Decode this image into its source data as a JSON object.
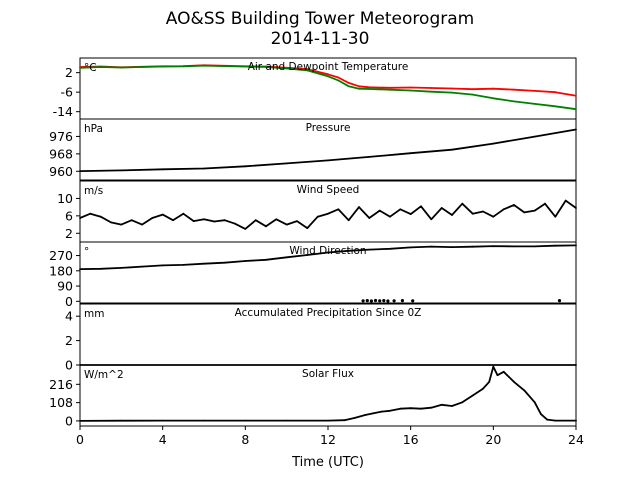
{
  "title_line1": "AO&SS Building Tower Meteorogram",
  "title_line2": "2014-11-30",
  "chart_data": {
    "type": "line",
    "xlabel": "Time (UTC)",
    "xlim": [
      0,
      24
    ],
    "xticks": [
      "0",
      "4",
      "8",
      "12",
      "16",
      "20",
      "24"
    ],
    "panels": [
      {
        "title": "Air and Dewpoint Temperature",
        "unit": "°C",
        "ylim": [
          -17,
          8
        ],
        "yticks": [
          2,
          -6,
          -14
        ],
        "series": [
          {
            "color": "#ff0000",
            "x": [
              0,
              1,
              2,
              3,
              4,
              5,
              6,
              7,
              8,
              9,
              10,
              11,
              12,
              12.5,
              13,
              13.5,
              14,
              15,
              16,
              17,
              18,
              19,
              20,
              21,
              22,
              23,
              24
            ],
            "y": [
              4.3,
              4.5,
              4.2,
              4.4,
              4.6,
              4.7,
              5.0,
              4.8,
              4.6,
              4.5,
              4.0,
              3.4,
              1.3,
              0.0,
              -2.2,
              -3.6,
              -4.0,
              -4.2,
              -4.1,
              -4.3,
              -4.5,
              -4.8,
              -4.6,
              -5.0,
              -5.5,
              -6.0,
              -7.5
            ]
          },
          {
            "color": "#008000",
            "x": [
              0,
              1,
              2,
              3,
              4,
              5,
              6,
              7,
              8,
              9,
              10,
              11,
              12,
              12.5,
              13,
              13.5,
              14,
              15,
              16,
              17,
              18,
              19,
              20,
              21,
              22,
              23,
              24
            ],
            "y": [
              4.0,
              4.3,
              4.1,
              4.3,
              4.5,
              4.6,
              4.9,
              4.7,
              4.5,
              4.3,
              3.7,
              2.9,
              0.5,
              -1.2,
              -3.6,
              -4.6,
              -4.7,
              -5.0,
              -5.3,
              -5.8,
              -6.2,
              -7.0,
              -8.5,
              -9.8,
              -10.8,
              -11.8,
              -13.0
            ]
          }
        ]
      },
      {
        "title": "Pressure",
        "unit": "hPa",
        "ylim": [
          956,
          984
        ],
        "yticks": [
          976,
          968,
          960
        ],
        "series": [
          {
            "color": "#000000",
            "x": [
              0,
              2,
              4,
              6,
              8,
              10,
              12,
              14,
              16,
              18,
              20,
              22,
              24
            ],
            "y": [
              960.1,
              960.4,
              960.9,
              961.3,
              962.3,
              963.6,
              965.0,
              966.6,
              968.3,
              969.9,
              972.7,
              975.9,
              979.2
            ]
          }
        ]
      },
      {
        "title": "Wind Speed",
        "unit": "m/s",
        "ylim": [
          0,
          14
        ],
        "yticks": [
          10,
          6,
          2
        ],
        "series": [
          {
            "color": "#000000",
            "x": [
              0,
              0.5,
              1,
              1.5,
              2,
              2.5,
              3,
              3.5,
              4,
              4.5,
              5,
              5.5,
              6,
              6.5,
              7,
              7.5,
              8,
              8.5,
              9,
              9.5,
              10,
              10.5,
              11,
              11.5,
              12,
              12.5,
              13,
              13.5,
              14,
              14.5,
              15,
              15.5,
              16,
              16.5,
              17,
              17.5,
              18,
              18.5,
              19,
              19.5,
              20,
              20.5,
              21,
              21.5,
              22,
              22.5,
              23,
              23.5,
              24
            ],
            "y": [
              5.5,
              6.5,
              5.8,
              4.5,
              4.0,
              5.0,
              4.0,
              5.5,
              6.3,
              5.0,
              6.5,
              4.8,
              5.2,
              4.7,
              5.0,
              4.2,
              3.0,
              5.0,
              3.6,
              5.2,
              4.0,
              4.8,
              3.2,
              5.8,
              6.5,
              7.5,
              5.0,
              8.0,
              5.5,
              7.2,
              5.8,
              7.5,
              6.4,
              8.2,
              5.2,
              7.8,
              6.2,
              8.8,
              6.5,
              7.0,
              5.8,
              7.5,
              8.5,
              6.8,
              7.2,
              8.8,
              5.8,
              9.5,
              7.8
            ]
          }
        ]
      },
      {
        "title": "Wind Direction",
        "unit": "°",
        "ylim": [
          -10,
          350
        ],
        "yticks": [
          270,
          180,
          90,
          0
        ],
        "series": [
          {
            "color": "#000000",
            "x": [
              0,
              1,
              2,
              3,
              4,
              5,
              6,
              7,
              8,
              9,
              10,
              11,
              12,
              13,
              14,
              15,
              16,
              17,
              18,
              19,
              20,
              21,
              22,
              23,
              24
            ],
            "y": [
              190,
              192,
              197,
              205,
              212,
              215,
              222,
              228,
              238,
              245,
              260,
              273,
              288,
              298,
              305,
              310,
              318,
              323,
              320,
              322,
              326,
              324,
              324,
              328,
              330
            ]
          }
        ],
        "points": [
          {
            "x": 13.7,
            "y": 3
          },
          {
            "x": 13.9,
            "y": 4
          },
          {
            "x": 14.1,
            "y": 2
          },
          {
            "x": 14.3,
            "y": 5
          },
          {
            "x": 14.5,
            "y": 3
          },
          {
            "x": 14.7,
            "y": 4
          },
          {
            "x": 14.9,
            "y": 2
          },
          {
            "x": 15.2,
            "y": 3
          },
          {
            "x": 15.6,
            "y": 4
          },
          {
            "x": 16.1,
            "y": 3
          },
          {
            "x": 23.2,
            "y": 4
          }
        ]
      },
      {
        "title": "Accumulated Precipitation Since 0Z",
        "unit": "mm",
        "ylim": [
          0,
          5
        ],
        "yticks": [
          4,
          2,
          0
        ],
        "series": [
          {
            "color": "#000000",
            "x": [
              0,
              24
            ],
            "y": [
              0,
              0
            ]
          }
        ]
      },
      {
        "title": "Solar Flux",
        "unit": "W/m^2",
        "ylim": [
          -30,
          330
        ],
        "yticks": [
          216,
          108,
          0
        ],
        "series": [
          {
            "color": "#000000",
            "x": [
              0,
              2,
              4,
              6,
              8,
              10,
              12,
              12.8,
              13.3,
              13.8,
              14.2,
              14.6,
              15,
              15.5,
              16,
              16.5,
              17,
              17.5,
              18,
              18.5,
              19,
              19.5,
              19.8,
              20,
              20.2,
              20.5,
              21,
              21.5,
              22,
              22.3,
              22.6,
              23,
              24
            ],
            "y": [
              0,
              1,
              2,
              2,
              2,
              2,
              2,
              4,
              18,
              35,
              45,
              55,
              60,
              72,
              75,
              72,
              78,
              95,
              88,
              110,
              150,
              190,
              230,
              320,
              270,
              290,
              230,
              180,
              110,
              40,
              8,
              2,
              2
            ]
          }
        ]
      }
    ]
  }
}
